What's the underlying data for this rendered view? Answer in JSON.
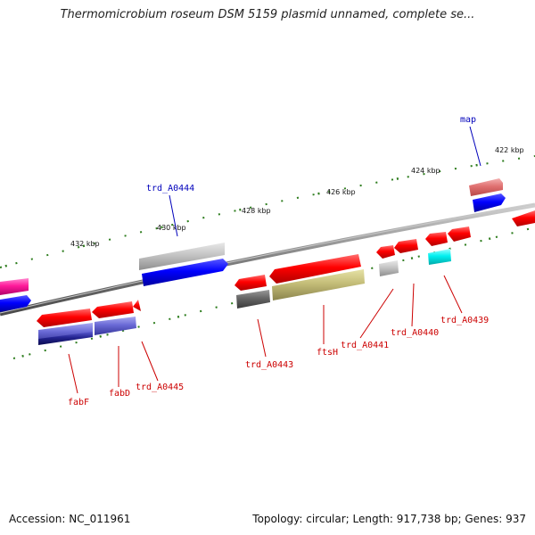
{
  "title": "Thermomicrobium roseum DSM 5159 plasmid unnamed, complete se...",
  "footer": {
    "accession": "Accession: NC_011961",
    "stats": "Topology: circular; Length: 917,738 bp; Genes: 937"
  },
  "colors": {
    "backbone": "#888888",
    "tick": "#2e7d1e",
    "label_red": "#cc0000",
    "label_blue": "#0000bb"
  },
  "scale_labels": [
    "422 kbp",
    "424 kbp",
    "426 kbp",
    "428 kbp",
    "430 kbp",
    "432 kbp"
  ],
  "gene_labels": [
    {
      "text": "map",
      "color": "#0000bb"
    },
    {
      "text": "trd_A0444",
      "color": "#0000bb"
    },
    {
      "text": "fabF",
      "color": "#cc0000"
    },
    {
      "text": "fabD",
      "color": "#cc0000"
    },
    {
      "text": "trd_A0445",
      "color": "#cc0000"
    },
    {
      "text": "trd_A0443",
      "color": "#cc0000"
    },
    {
      "text": "ftsH",
      "color": "#cc0000"
    },
    {
      "text": "trd_A0441",
      "color": "#cc0000"
    },
    {
      "text": "trd_A0440",
      "color": "#cc0000"
    },
    {
      "text": "trd_A0439",
      "color": "#cc0000"
    }
  ]
}
